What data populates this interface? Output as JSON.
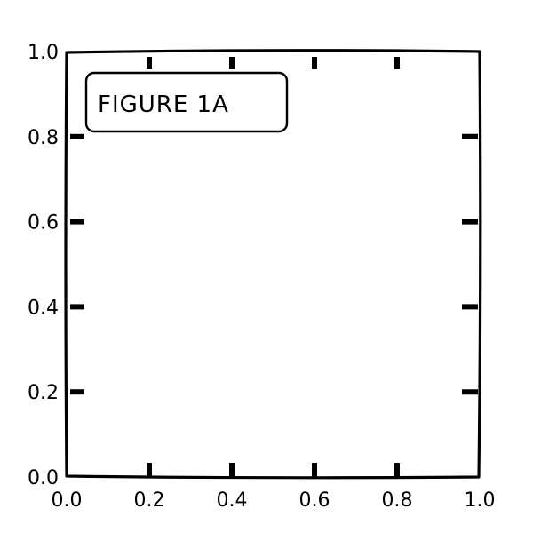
{
  "chart_data": {
    "type": "line",
    "title": "",
    "xlabel": "",
    "ylabel": "",
    "xlim": [
      0.0,
      1.0
    ],
    "ylim": [
      0.0,
      1.0
    ],
    "xticks": [
      "0.0",
      "0.2",
      "0.4",
      "0.6",
      "0.8",
      "1.0"
    ],
    "yticks": [
      "0.0",
      "0.2",
      "0.4",
      "0.6",
      "0.8",
      "1.0"
    ],
    "series": [],
    "grid": false,
    "annotations": [
      {
        "text": "FIGURE 1A",
        "placement": "top-left"
      }
    ],
    "style": "hand-drawn (xkcd)"
  }
}
